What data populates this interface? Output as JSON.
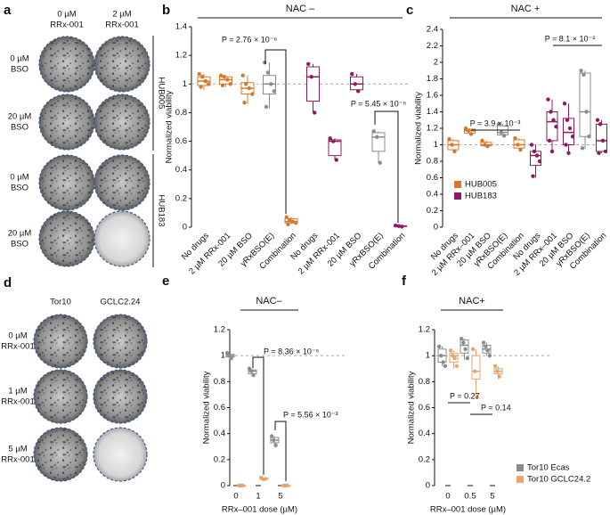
{
  "image_panels": [
    {
      "panel": "a",
      "column_labels": [
        [
          "0 µM",
          "RRx-001"
        ],
        [
          "2 µM",
          "RRx-001"
        ]
      ],
      "row_labels": [
        [
          "0 µM",
          "BSO"
        ],
        [
          "20 µM",
          "BSO"
        ],
        [
          "0 µM",
          "BSO"
        ],
        [
          "20 µM",
          "BSO"
        ]
      ],
      "group_labels": [
        "HUB005",
        "HUB183"
      ]
    },
    {
      "panel": "d",
      "column_labels": [
        [
          "Tor10"
        ],
        [
          "GCLC2.24"
        ]
      ],
      "row_labels": [
        [
          "0 µM",
          "RRx-001"
        ],
        [
          "1 µM",
          "RRx-001"
        ],
        [
          "5 µM",
          "RRx-001"
        ]
      ]
    }
  ],
  "chart_data": [
    {
      "type": "box",
      "panel": "b",
      "title": "NAC –",
      "y_label": "Normalized viability",
      "ylim": [
        0,
        1.4
      ],
      "yticks": [
        0,
        0.2,
        0.4,
        0.6,
        0.8,
        1.0,
        1.2,
        1.4
      ],
      "hline": 1.0,
      "categories": [
        "No drugs",
        "2 µM RRx-001",
        "20 µM BSO",
        "γRxBSO(E)",
        "Combination",
        "No drugs",
        "2 µM RRx-001",
        "20 µM BSO",
        "γRxBSO(E)",
        "Combination"
      ],
      "boxes": [
        {
          "color": "#d9782d",
          "min": 0.96,
          "q1": 0.99,
          "median": 1.02,
          "q3": 1.05,
          "max": 1.07,
          "points": [
            1.07,
            1.05,
            1.02,
            1.0,
            0.98
          ]
        },
        {
          "color": "#d9782d",
          "min": 0.98,
          "q1": 1.0,
          "median": 1.03,
          "q3": 1.05,
          "max": 1.06,
          "points": [
            1.06,
            1.05,
            1.03,
            1.0,
            0.99
          ]
        },
        {
          "color": "#d9782d",
          "min": 0.86,
          "q1": 0.93,
          "median": 0.97,
          "q3": 1.01,
          "max": 1.06,
          "points": [
            1.06,
            1.0,
            0.97,
            0.93,
            0.87
          ]
        },
        {
          "color": "#8c8c8c",
          "min": 0.83,
          "q1": 0.93,
          "median": 1.0,
          "q3": 1.06,
          "max": 1.15,
          "points": [
            1.15,
            1.08,
            1.0,
            0.95,
            0.84
          ]
        },
        {
          "color": "#d9782d",
          "min": 0.02,
          "q1": 0.03,
          "median": 0.04,
          "q3": 0.06,
          "max": 0.07,
          "points": [
            0.07,
            0.05,
            0.04,
            0.03,
            0.02
          ]
        },
        {
          "color": "#8e1b5e",
          "min": 0.8,
          "q1": 0.88,
          "median": 1.05,
          "q3": 1.12,
          "max": 1.14,
          "points": [
            1.14,
            1.05,
            0.8
          ]
        },
        {
          "color": "#8e1b5e",
          "min": 0.47,
          "q1": 0.5,
          "median": 0.6,
          "q3": 0.61,
          "max": 0.62,
          "points": [
            0.62,
            0.6,
            0.47
          ]
        },
        {
          "color": "#8e1b5e",
          "min": 0.95,
          "q1": 0.96,
          "median": 1.0,
          "q3": 1.05,
          "max": 1.07,
          "points": [
            1.07,
            1.0,
            0.95
          ]
        },
        {
          "color": "#8c8c8c",
          "min": 0.45,
          "q1": 0.53,
          "median": 0.63,
          "q3": 0.66,
          "max": 0.67,
          "points": [
            0.67,
            0.63,
            0.45
          ]
        },
        {
          "color": "#8e1b5e",
          "min": 0.0,
          "q1": 0.005,
          "median": 0.008,
          "q3": 0.01,
          "max": 0.012,
          "points": [
            0.012,
            0.008,
            0.004
          ]
        }
      ],
      "annotations": [
        "P = 2.76 × 10⁻⁶",
        "P = 5.45 × 10⁻⁵"
      ]
    },
    {
      "type": "box",
      "panel": "c",
      "title": "NAC +",
      "y_label": "Normalized viability",
      "ylim": [
        0,
        2.4
      ],
      "yticks": [
        0,
        0.2,
        0.4,
        0.6,
        0.8,
        1.0,
        1.2,
        1.4,
        1.6,
        1.8,
        2.0,
        2.2,
        2.4
      ],
      "hline": 1.0,
      "categories": [
        "No drugs",
        "2 µM RRx–001",
        "20 µM BSO",
        "γRxBSO(E)",
        "Combination",
        "No drugs",
        "2 µM RRx–001",
        "20 µM BSO",
        "γRxBSO(E)",
        "Combination"
      ],
      "boxes": [
        {
          "color": "#d9782d",
          "min": 0.9,
          "q1": 0.94,
          "median": 1.0,
          "q3": 1.05,
          "max": 1.07,
          "points": [
            1.07,
            1.0,
            0.92
          ]
        },
        {
          "color": "#d9782d",
          "min": 1.12,
          "q1": 1.14,
          "median": 1.17,
          "q3": 1.19,
          "max": 1.2,
          "points": [
            1.2,
            1.17,
            1.13
          ]
        },
        {
          "color": "#d9782d",
          "min": 0.97,
          "q1": 0.99,
          "median": 1.0,
          "q3": 1.03,
          "max": 1.05,
          "points": [
            1.05,
            1.0,
            0.98
          ]
        },
        {
          "color": "#8c8c8c",
          "min": 1.1,
          "q1": 1.12,
          "median": 1.15,
          "q3": 1.23,
          "max": 1.25,
          "points": [
            1.25,
            1.15,
            1.11
          ]
        },
        {
          "color": "#d9782d",
          "min": 0.92,
          "q1": 0.96,
          "median": 1.0,
          "q3": 1.06,
          "max": 1.08,
          "points": [
            1.08,
            1.0,
            0.94
          ]
        },
        {
          "color": "#8e1b5e",
          "min": 0.6,
          "q1": 0.75,
          "median": 0.87,
          "q3": 0.92,
          "max": 1.0,
          "points": [
            1.0,
            0.92,
            0.87,
            0.8,
            0.62
          ]
        },
        {
          "color": "#8e1b5e",
          "min": 0.9,
          "q1": 1.05,
          "median": 1.28,
          "q3": 1.4,
          "max": 1.55,
          "points": [
            1.55,
            1.4,
            1.3,
            1.22,
            1.05,
            0.92
          ]
        },
        {
          "color": "#8e1b5e",
          "min": 0.9,
          "q1": 1.0,
          "median": 1.15,
          "q3": 1.32,
          "max": 1.5,
          "points": [
            1.5,
            1.3,
            1.2,
            1.1,
            1.0,
            0.9
          ]
        },
        {
          "color": "#8c8c8c",
          "min": 0.95,
          "q1": 1.1,
          "median": 1.4,
          "q3": 1.87,
          "max": 1.9,
          "points": [
            1.9,
            1.85,
            1.4,
            1.1,
            0.96
          ]
        },
        {
          "color": "#8e1b5e",
          "min": 0.9,
          "q1": 0.92,
          "median": 1.05,
          "q3": 1.25,
          "max": 1.3,
          "points": [
            1.3,
            1.25,
            1.05,
            0.92,
            0.9
          ]
        }
      ],
      "legend": [
        {
          "name": "HUB005",
          "color": "#d9782d"
        },
        {
          "name": "HUB183",
          "color": "#8e1b5e"
        }
      ],
      "annotations": [
        "P = 3.9 × 10⁻³",
        "P = 8.1 × 10⁻²"
      ]
    },
    {
      "type": "grouped-box",
      "panel": "e",
      "title": "NAC–",
      "y_label": "Normalized viability",
      "x_label": "RRx–001 dose (µM)",
      "ylim": [
        0,
        1.2
      ],
      "yticks": [
        0,
        0.2,
        0.4,
        0.6,
        0.8,
        1.0,
        1.2
      ],
      "hline": 1.0,
      "categories": [
        "0",
        "1",
        "5"
      ],
      "series": [
        {
          "name": "Tor10 Ecas",
          "color": "#8c8c8c",
          "boxes": [
            {
              "min": 0.98,
              "q1": 0.99,
              "median": 1.0,
              "q3": 1.01,
              "max": 1.02,
              "points": [
                1.02,
                1.0,
                0.98
              ]
            },
            {
              "min": 0.85,
              "q1": 0.86,
              "median": 0.88,
              "q3": 0.89,
              "max": 0.9,
              "points": [
                0.9,
                0.88,
                0.85
              ]
            },
            {
              "min": 0.31,
              "q1": 0.33,
              "median": 0.35,
              "q3": 0.37,
              "max": 0.38,
              "points": [
                0.38,
                0.35,
                0.31
              ]
            }
          ]
        },
        {
          "name": "Tor10 GCLC24.2",
          "color": "#e8a46a",
          "boxes": [
            {
              "min": 0,
              "q1": 0,
              "median": 0,
              "q3": 0,
              "max": 0,
              "points": [
                0,
                0,
                0
              ]
            },
            {
              "min": 0.05,
              "q1": 0.05,
              "median": 0.05,
              "q3": 0.06,
              "max": 0.06,
              "points": [
                0.06,
                0.05,
                0.05
              ]
            },
            {
              "min": 0,
              "q1": 0,
              "median": 0,
              "q3": 0,
              "max": 0,
              "points": [
                0,
                0,
                0
              ]
            }
          ]
        }
      ],
      "annotations": [
        "P = 8.36 × 10⁻⁵",
        "P = 5.56 × 10⁻³"
      ]
    },
    {
      "type": "grouped-box",
      "panel": "f",
      "title": "NAC+",
      "y_label": "Normalized viability",
      "x_label": "RRx–001 dose (µM)",
      "ylim": [
        0,
        1.2
      ],
      "yticks": [
        0,
        0.2,
        0.4,
        0.6,
        0.8,
        1.0,
        1.2
      ],
      "hline": 1.0,
      "categories": [
        "0",
        "0.5",
        "5"
      ],
      "series": [
        {
          "name": "Tor10 Ecas",
          "color": "#8c8c8c",
          "boxes": [
            {
              "min": 0.92,
              "q1": 0.95,
              "median": 1.0,
              "q3": 1.05,
              "max": 1.07,
              "points": [
                1.07,
                1.0,
                0.95,
                0.92
              ]
            },
            {
              "min": 0.97,
              "q1": 1.02,
              "median": 1.08,
              "q3": 1.12,
              "max": 1.13,
              "points": [
                1.13,
                1.1,
                1.05,
                0.98
              ]
            },
            {
              "min": 1.0,
              "q1": 1.02,
              "median": 1.05,
              "q3": 1.08,
              "max": 1.1,
              "points": [
                1.1,
                1.07,
                1.04,
                1.0
              ]
            }
          ]
        },
        {
          "name": "Tor10 GCLC24.2",
          "color": "#e8a46a",
          "boxes": [
            {
              "min": 0.9,
              "q1": 0.95,
              "median": 1.0,
              "q3": 1.02,
              "max": 1.04,
              "points": [
                1.04,
                1.0,
                0.98,
                0.92
              ]
            },
            {
              "min": 0.68,
              "q1": 0.82,
              "median": 0.88,
              "q3": 1.0,
              "max": 1.05,
              "points": [
                1.05,
                0.88,
                0.68
              ]
            },
            {
              "min": 0.82,
              "q1": 0.86,
              "median": 0.88,
              "q3": 0.9,
              "max": 0.92,
              "points": [
                0.92,
                0.88,
                0.84
              ]
            }
          ]
        }
      ],
      "legend": [
        {
          "name": "Tor10 Ecas",
          "color": "#8c8c8c"
        },
        {
          "name": "Tor10 GCLC24.2",
          "color": "#e8a46a"
        }
      ],
      "annotations": [
        "P = 0.27",
        "P = 0.14"
      ]
    }
  ]
}
